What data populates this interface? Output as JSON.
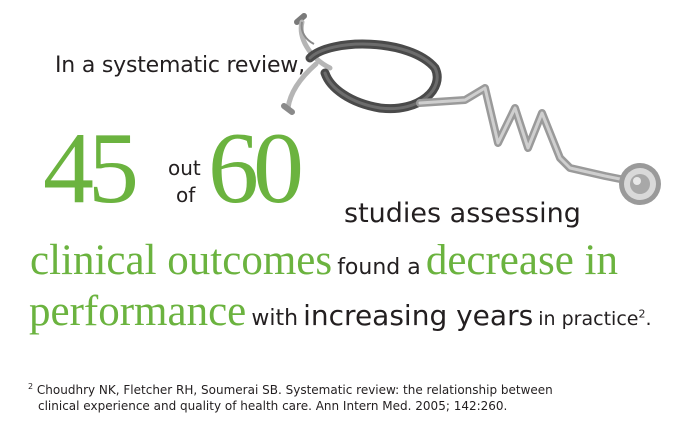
{
  "intro": "In a systematic review,",
  "number_a": "45",
  "out": "out",
  "of": "of",
  "number_b": "60",
  "studies": "studies assessing",
  "line1": {
    "green_a": "clinical outcomes",
    "dark_a": "found a",
    "green_b": "decrease in"
  },
  "line2": {
    "green_a": "performance",
    "dark_a": "with",
    "dark_b": "increasing years",
    "dark_c": "in practice",
    "ref": "2",
    "end": "."
  },
  "footnote": {
    "marker": "2",
    "line1": "Choudhry NK, Fletcher RH, Soumerai SB. Systematic review: the relationship between",
    "line2": "clinical experience and quality of health care. Ann Intern Med. 2005; 142:260."
  },
  "colors": {
    "accent_green": "#6bb33f",
    "text_dark": "#231f20"
  },
  "icons": [
    "stethoscope-icon"
  ]
}
